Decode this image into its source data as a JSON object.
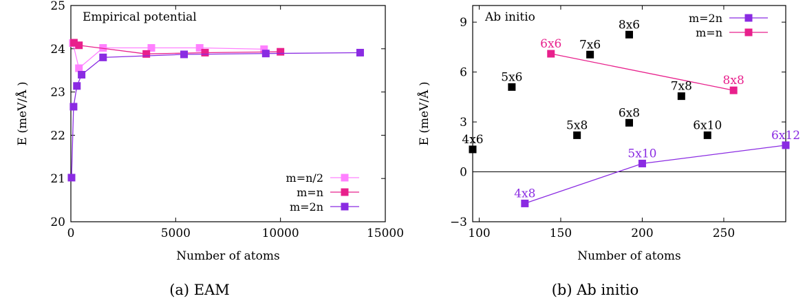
{
  "figure": {
    "captions": [
      "(a) EAM",
      "(b) Ab initio"
    ]
  },
  "chart_data": [
    {
      "type": "line",
      "title": "Empirical potential",
      "xlabel": "Number of atoms",
      "ylabel": "E (meV/Å )",
      "xlim": [
        0,
        15000
      ],
      "ylim": [
        20,
        25
      ],
      "xticks": [
        0,
        5000,
        10000,
        15000
      ],
      "yticks": [
        20,
        21,
        22,
        23,
        24,
        25
      ],
      "grid": false,
      "legend": "bottom-right",
      "series": [
        {
          "name": "m=n/2",
          "color": "#ff80ff",
          "x": [
            96,
            384,
            1536,
            3840,
            6144,
            9216
          ],
          "y": [
            24.13,
            23.55,
            24.02,
            24.02,
            24.02,
            23.99
          ]
        },
        {
          "name": "m=n",
          "color": "#e8208c",
          "x": [
            144,
            384,
            3600,
            6400,
            10000
          ],
          "y": [
            24.14,
            24.08,
            23.88,
            23.91,
            23.93
          ]
        },
        {
          "name": "m=2n",
          "color": "#8a2be2",
          "x": [
            32,
            128,
            288,
            512,
            1536,
            5400,
            9300,
            13800
          ],
          "y": [
            21.02,
            22.66,
            23.14,
            23.4,
            23.8,
            23.87,
            23.89,
            23.91
          ]
        }
      ]
    },
    {
      "type": "scatter",
      "title": "Ab initio",
      "xlabel": "Number of atoms",
      "ylabel": "E (meV/Å )",
      "xlim": [
        96,
        288
      ],
      "ylim": [
        -3,
        10
      ],
      "xticks": [
        100,
        150,
        200,
        250
      ],
      "yticks": [
        -3,
        0,
        3,
        6,
        9
      ],
      "grid": false,
      "zero_line": true,
      "legend": "top-right",
      "series": [
        {
          "name": "m=2n",
          "color": "#8a2be2",
          "x": [
            128,
            200,
            288
          ],
          "y": [
            -1.9,
            0.5,
            1.6
          ],
          "labels": [
            "4x8",
            "5x10",
            "6x12"
          ]
        },
        {
          "name": "m=n",
          "color": "#e8208c",
          "x": [
            144,
            256
          ],
          "y": [
            7.1,
            4.9
          ],
          "labels": [
            "6x6",
            "8x8"
          ]
        },
        {
          "name": "",
          "color": "#000000",
          "x": [
            96,
            120,
            160,
            168,
            192,
            192,
            224,
            240
          ],
          "y": [
            1.35,
            5.1,
            2.2,
            7.05,
            8.25,
            2.95,
            4.55,
            2.2
          ],
          "labels": [
            "4x6",
            "5x6",
            "5x8",
            "7x6",
            "8x6",
            "6x8",
            "7x8",
            "6x10"
          ]
        }
      ]
    }
  ]
}
